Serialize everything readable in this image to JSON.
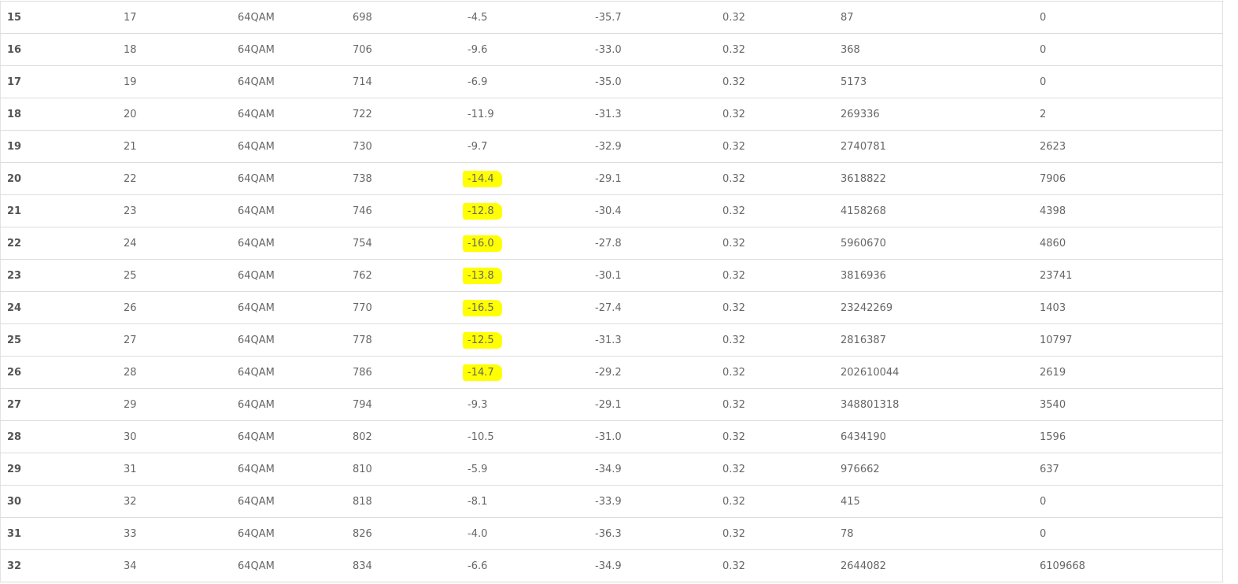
{
  "highlight_color": "#ffff00",
  "rows": [
    {
      "c0": "15",
      "c1": "17",
      "c2": "64QAM",
      "c3": "698",
      "c4": "-4.5",
      "c5": "-35.7",
      "c6": "0.32",
      "c7": "87",
      "c8": "0",
      "highlighted": false
    },
    {
      "c0": "16",
      "c1": "18",
      "c2": "64QAM",
      "c3": "706",
      "c4": "-9.6",
      "c5": "-33.0",
      "c6": "0.32",
      "c7": "368",
      "c8": "0",
      "highlighted": false
    },
    {
      "c0": "17",
      "c1": "19",
      "c2": "64QAM",
      "c3": "714",
      "c4": "-6.9",
      "c5": "-35.0",
      "c6": "0.32",
      "c7": "5173",
      "c8": "0",
      "highlighted": false
    },
    {
      "c0": "18",
      "c1": "20",
      "c2": "64QAM",
      "c3": "722",
      "c4": "-11.9",
      "c5": "-31.3",
      "c6": "0.32",
      "c7": "269336",
      "c8": "2",
      "highlighted": false
    },
    {
      "c0": "19",
      "c1": "21",
      "c2": "64QAM",
      "c3": "730",
      "c4": "-9.7",
      "c5": "-32.9",
      "c6": "0.32",
      "c7": "2740781",
      "c8": "2623",
      "highlighted": false
    },
    {
      "c0": "20",
      "c1": "22",
      "c2": "64QAM",
      "c3": "738",
      "c4": "-14.4",
      "c5": "-29.1",
      "c6": "0.32",
      "c7": "3618822",
      "c8": "7906",
      "highlighted": true
    },
    {
      "c0": "21",
      "c1": "23",
      "c2": "64QAM",
      "c3": "746",
      "c4": "-12.8",
      "c5": "-30.4",
      "c6": "0.32",
      "c7": "4158268",
      "c8": "4398",
      "highlighted": true
    },
    {
      "c0": "22",
      "c1": "24",
      "c2": "64QAM",
      "c3": "754",
      "c4": "-16.0",
      "c5": "-27.8",
      "c6": "0.32",
      "c7": "5960670",
      "c8": "4860",
      "highlighted": true
    },
    {
      "c0": "23",
      "c1": "25",
      "c2": "64QAM",
      "c3": "762",
      "c4": "-13.8",
      "c5": "-30.1",
      "c6": "0.32",
      "c7": "3816936",
      "c8": "23741",
      "highlighted": true
    },
    {
      "c0": "24",
      "c1": "26",
      "c2": "64QAM",
      "c3": "770",
      "c4": "-16.5",
      "c5": "-27.4",
      "c6": "0.32",
      "c7": "23242269",
      "c8": "1403",
      "highlighted": true
    },
    {
      "c0": "25",
      "c1": "27",
      "c2": "64QAM",
      "c3": "778",
      "c4": "-12.5",
      "c5": "-31.3",
      "c6": "0.32",
      "c7": "2816387",
      "c8": "10797",
      "highlighted": true
    },
    {
      "c0": "26",
      "c1": "28",
      "c2": "64QAM",
      "c3": "786",
      "c4": "-14.7",
      "c5": "-29.2",
      "c6": "0.32",
      "c7": "202610044",
      "c8": "2619",
      "highlighted": true
    },
    {
      "c0": "27",
      "c1": "29",
      "c2": "64QAM",
      "c3": "794",
      "c4": "-9.3",
      "c5": "-29.1",
      "c6": "0.32",
      "c7": "348801318",
      "c8": "3540",
      "highlighted": false
    },
    {
      "c0": "28",
      "c1": "30",
      "c2": "64QAM",
      "c3": "802",
      "c4": "-10.5",
      "c5": "-31.0",
      "c6": "0.32",
      "c7": "6434190",
      "c8": "1596",
      "highlighted": false
    },
    {
      "c0": "29",
      "c1": "31",
      "c2": "64QAM",
      "c3": "810",
      "c4": "-5.9",
      "c5": "-34.9",
      "c6": "0.32",
      "c7": "976662",
      "c8": "637",
      "highlighted": false
    },
    {
      "c0": "30",
      "c1": "32",
      "c2": "64QAM",
      "c3": "818",
      "c4": "-8.1",
      "c5": "-33.9",
      "c6": "0.32",
      "c7": "415",
      "c8": "0",
      "highlighted": false
    },
    {
      "c0": "31",
      "c1": "33",
      "c2": "64QAM",
      "c3": "826",
      "c4": "-4.0",
      "c5": "-36.3",
      "c6": "0.32",
      "c7": "78",
      "c8": "0",
      "highlighted": false
    },
    {
      "c0": "32",
      "c1": "34",
      "c2": "64QAM",
      "c3": "834",
      "c4": "-6.6",
      "c5": "-34.9",
      "c6": "0.32",
      "c7": "2644082",
      "c8": "6109668",
      "highlighted": false
    }
  ]
}
